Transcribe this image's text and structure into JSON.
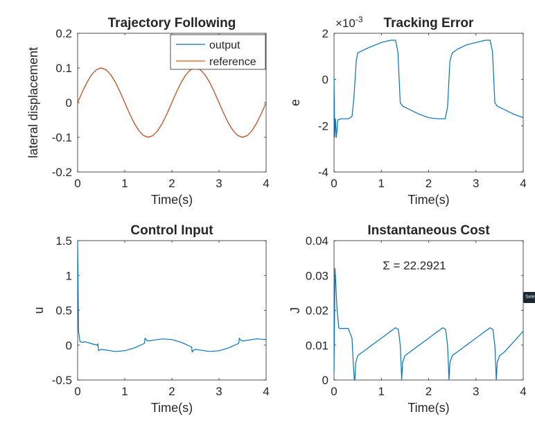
{
  "colors": {
    "output": "#0072BD",
    "reference": "#D95319",
    "axes": "#262626",
    "background": "#ffffff"
  },
  "side_tab": {
    "label": "Sele"
  },
  "chart_data": [
    {
      "id": "trajectory",
      "type": "line",
      "title": "Trajectory Following",
      "xlabel": "Time(s)",
      "ylabel": "lateral displacement",
      "xlim": [
        0,
        4
      ],
      "ylim": [
        -0.2,
        0.2
      ],
      "xticks": [
        "0",
        "1",
        "2",
        "3",
        "4"
      ],
      "yticks": [
        "-0.2",
        "-0.1",
        "0",
        "0.1",
        "0.2"
      ],
      "grid": false,
      "legend": {
        "placement": "top-right",
        "entries": [
          "output",
          "reference"
        ]
      },
      "series": [
        {
          "name": "output",
          "color": "#0072BD",
          "x": [
            0,
            0.1,
            0.2,
            0.3,
            0.4,
            0.5,
            0.6,
            0.7,
            0.8,
            0.9,
            1.0,
            1.1,
            1.2,
            1.3,
            1.4,
            1.5,
            1.6,
            1.7,
            1.8,
            1.9,
            2.0,
            2.1,
            2.2,
            2.3,
            2.4,
            2.5,
            2.6,
            2.7,
            2.8,
            2.9,
            3.0,
            3.1,
            3.2,
            3.3,
            3.4,
            3.5,
            3.6,
            3.7,
            3.8,
            3.9,
            4.0
          ],
          "y": [
            0,
            0.031,
            0.059,
            0.081,
            0.095,
            0.1,
            0.095,
            0.081,
            0.059,
            0.031,
            0,
            -0.031,
            -0.059,
            -0.081,
            -0.095,
            -0.1,
            -0.095,
            -0.081,
            -0.059,
            -0.031,
            0,
            0.031,
            0.059,
            0.081,
            0.095,
            0.1,
            0.095,
            0.081,
            0.059,
            0.031,
            0,
            -0.031,
            -0.059,
            -0.081,
            -0.095,
            -0.1,
            -0.095,
            -0.081,
            -0.059,
            -0.031,
            0
          ]
        },
        {
          "name": "reference",
          "color": "#D95319",
          "x": [
            0,
            0.1,
            0.2,
            0.3,
            0.4,
            0.5,
            0.6,
            0.7,
            0.8,
            0.9,
            1.0,
            1.1,
            1.2,
            1.3,
            1.4,
            1.5,
            1.6,
            1.7,
            1.8,
            1.9,
            2.0,
            2.1,
            2.2,
            2.3,
            2.4,
            2.5,
            2.6,
            2.7,
            2.8,
            2.9,
            3.0,
            3.1,
            3.2,
            3.3,
            3.4,
            3.5,
            3.6,
            3.7,
            3.8,
            3.9,
            4.0
          ],
          "y": [
            0,
            0.031,
            0.059,
            0.081,
            0.095,
            0.1,
            0.095,
            0.081,
            0.059,
            0.031,
            0,
            -0.031,
            -0.059,
            -0.081,
            -0.095,
            -0.1,
            -0.095,
            -0.081,
            -0.059,
            -0.031,
            0,
            0.031,
            0.059,
            0.081,
            0.095,
            0.1,
            0.095,
            0.081,
            0.059,
            0.031,
            0,
            -0.031,
            -0.059,
            -0.081,
            -0.095,
            -0.1,
            -0.095,
            -0.081,
            -0.059,
            -0.031,
            0
          ]
        }
      ]
    },
    {
      "id": "tracking_error",
      "type": "line",
      "title": "Tracking Error",
      "xlabel": "Time(s)",
      "ylabel": "e",
      "xlim": [
        0,
        4
      ],
      "ylim": [
        -4,
        2
      ],
      "xticks": [
        "0",
        "1",
        "2",
        "3",
        "4"
      ],
      "yticks": [
        "-4",
        "-2",
        "0",
        "2"
      ],
      "exponent_label": {
        "base": "×10",
        "power": "-3"
      },
      "grid": false,
      "series": [
        {
          "color": "#0072BD",
          "x": [
            0,
            0.015,
            0.03,
            0.05,
            0.08,
            0.15,
            0.3,
            0.38,
            0.42,
            0.47,
            0.5,
            0.7,
            1.0,
            1.2,
            1.3,
            1.35,
            1.4,
            1.45,
            1.5,
            1.6,
            1.8,
            2.0,
            2.2,
            2.35,
            2.4,
            2.45,
            2.5,
            2.6,
            2.8,
            3.0,
            3.2,
            3.3,
            3.35,
            3.4,
            3.45,
            3.5,
            3.6,
            3.8,
            4.0
          ],
          "y": [
            0.1,
            -2.5,
            -1.7,
            -2.5,
            -1.75,
            -1.7,
            -1.7,
            -1.6,
            -0.8,
            0.8,
            1.15,
            1.35,
            1.6,
            1.7,
            1.7,
            1.2,
            -1.0,
            -1.15,
            -1.2,
            -1.3,
            -1.5,
            -1.65,
            -1.7,
            -1.7,
            -1.2,
            0.8,
            1.15,
            1.3,
            1.5,
            1.6,
            1.7,
            1.7,
            1.2,
            -1.0,
            -1.15,
            -1.2,
            -1.3,
            -1.5,
            -1.65
          ]
        }
      ]
    },
    {
      "id": "control_input",
      "type": "line",
      "title": "Control Input",
      "xlabel": "Time(s)",
      "ylabel": "u",
      "xlim": [
        0,
        4
      ],
      "ylim": [
        -0.5,
        1.5
      ],
      "xticks": [
        "0",
        "1",
        "2",
        "3",
        "4"
      ],
      "yticks": [
        "-0.5",
        "0",
        "0.5",
        "1",
        "1.5"
      ],
      "grid": false,
      "series": [
        {
          "color": "#0072BD",
          "x": [
            0,
            0.02,
            0.05,
            0.1,
            0.15,
            0.2,
            0.3,
            0.42,
            0.43,
            0.44,
            0.45,
            0.5,
            0.6,
            0.8,
            1.0,
            1.2,
            1.4,
            1.42,
            1.43,
            1.45,
            1.5,
            1.6,
            1.8,
            2.0,
            2.2,
            2.4,
            2.42,
            2.43,
            2.45,
            2.5,
            2.6,
            2.8,
            3.0,
            3.2,
            3.4,
            3.42,
            3.43,
            3.45,
            3.5,
            3.6,
            3.8,
            4.0
          ],
          "y": [
            1.5,
            0.2,
            0.05,
            0.04,
            0.05,
            0.04,
            0.02,
            0.0,
            0.02,
            -0.07,
            -0.08,
            -0.06,
            -0.07,
            -0.09,
            -0.08,
            -0.04,
            0.02,
            0.03,
            0.1,
            0.08,
            0.06,
            0.07,
            0.09,
            0.08,
            0.04,
            -0.02,
            -0.03,
            -0.1,
            -0.08,
            -0.06,
            -0.07,
            -0.09,
            -0.08,
            -0.04,
            0.02,
            0.03,
            0.1,
            0.08,
            0.06,
            0.07,
            0.09,
            0.08
          ]
        }
      ]
    },
    {
      "id": "instantaneous_cost",
      "type": "line",
      "title": "Instantaneous Cost",
      "xlabel": "Time(s)",
      "ylabel": "J",
      "xlim": [
        0,
        4
      ],
      "ylim": [
        0,
        0.04
      ],
      "xticks": [
        "0",
        "1",
        "2",
        "3",
        "4"
      ],
      "yticks": [
        "0",
        "0.01",
        "0.02",
        "0.03",
        "0.04"
      ],
      "annotation": "Σ = 22.2921",
      "grid": false,
      "series": [
        {
          "color": "#0072BD",
          "x": [
            0,
            0.02,
            0.04,
            0.06,
            0.08,
            0.1,
            0.12,
            0.3,
            0.38,
            0.41,
            0.43,
            0.44,
            0.46,
            0.5,
            0.6,
            0.8,
            1.0,
            1.2,
            1.3,
            1.36,
            1.4,
            1.42,
            1.43,
            1.45,
            1.5,
            1.6,
            1.8,
            2.0,
            2.2,
            2.3,
            2.36,
            2.4,
            2.42,
            2.43,
            2.45,
            2.5,
            2.6,
            2.8,
            3.0,
            3.2,
            3.3,
            3.36,
            3.4,
            3.42,
            3.43,
            3.45,
            3.5,
            3.6,
            3.8,
            4.0
          ],
          "y": [
            0.002,
            0.032,
            0.027,
            0.021,
            0.018,
            0.015,
            0.0148,
            0.0148,
            0.012,
            0.004,
            0.0,
            0.0,
            0.005,
            0.007,
            0.008,
            0.01,
            0.012,
            0.014,
            0.015,
            0.0145,
            0.01,
            0.004,
            0.0,
            0.005,
            0.007,
            0.008,
            0.01,
            0.012,
            0.014,
            0.015,
            0.0145,
            0.01,
            0.004,
            0.0,
            0.005,
            0.007,
            0.008,
            0.01,
            0.012,
            0.014,
            0.015,
            0.0145,
            0.01,
            0.004,
            0.0,
            0.005,
            0.007,
            0.008,
            0.011,
            0.014
          ]
        }
      ]
    }
  ]
}
